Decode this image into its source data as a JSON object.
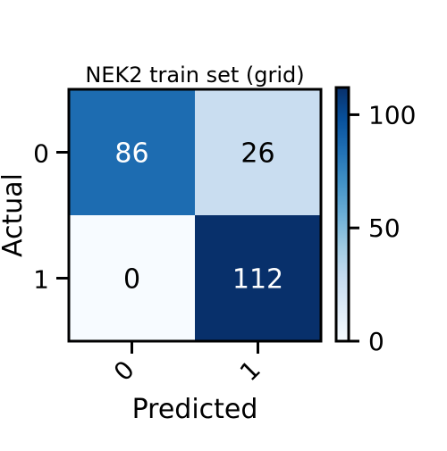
{
  "chart_data": {
    "type": "heatmap",
    "title": "NEK2 train set (grid)",
    "xlabel": "Predicted",
    "ylabel": "Actual",
    "x_categories": [
      "0",
      "1"
    ],
    "y_categories": [
      "0",
      "1"
    ],
    "matrix": [
      [
        86,
        26
      ],
      [
        0,
        112
      ]
    ],
    "colorbar": {
      "min": 0,
      "max": 112,
      "ticks": [
        0,
        50,
        100
      ],
      "colormap": "Blues"
    },
    "grid": false
  }
}
